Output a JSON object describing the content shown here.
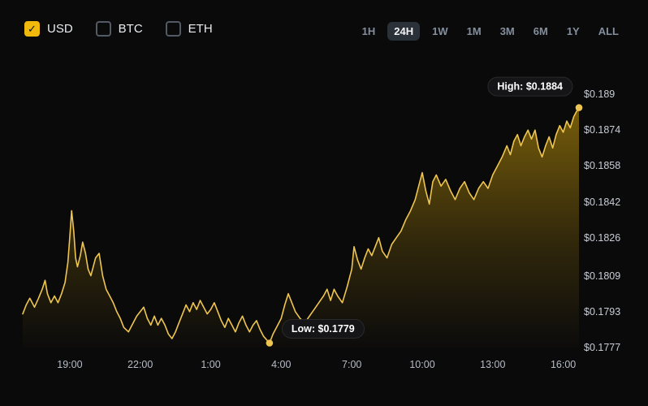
{
  "colors": {
    "accent": "#f0b90b",
    "line": "#eec550"
  },
  "controls": {
    "check_glyph": "✓",
    "currencies": [
      {
        "label": "USD",
        "checked": true
      },
      {
        "label": "BTC",
        "checked": false
      },
      {
        "label": "ETH",
        "checked": false
      }
    ],
    "ranges": [
      {
        "label": "1H",
        "active": false
      },
      {
        "label": "24H",
        "active": true
      },
      {
        "label": "1W",
        "active": false
      },
      {
        "label": "1M",
        "active": false
      },
      {
        "label": "3M",
        "active": false
      },
      {
        "label": "6M",
        "active": false
      },
      {
        "label": "1Y",
        "active": false
      },
      {
        "label": "ALL",
        "active": false
      }
    ]
  },
  "chart_data": {
    "type": "area",
    "title": "",
    "xlabel": "",
    "ylabel": "",
    "grid": false,
    "legend": "none",
    "xlim": [
      17.0,
      40.67
    ],
    "ylim": [
      0.1777,
      0.189
    ],
    "y_ticks": [
      {
        "value": 0.189,
        "label": "$0.189"
      },
      {
        "value": 0.1874,
        "label": "$0.1874"
      },
      {
        "value": 0.1858,
        "label": "$0.1858"
      },
      {
        "value": 0.1842,
        "label": "$0.1842"
      },
      {
        "value": 0.1826,
        "label": "$0.1826"
      },
      {
        "value": 0.1809,
        "label": "$0.1809"
      },
      {
        "value": 0.1793,
        "label": "$0.1793"
      },
      {
        "value": 0.1777,
        "label": "$0.1777"
      }
    ],
    "x_ticks": [
      {
        "t": 19,
        "label": "19:00"
      },
      {
        "t": 22,
        "label": "22:00"
      },
      {
        "t": 25,
        "label": "1:00"
      },
      {
        "t": 28,
        "label": "4:00"
      },
      {
        "t": 31,
        "label": "7:00"
      },
      {
        "t": 34,
        "label": "10:00"
      },
      {
        "t": 37,
        "label": "13:00"
      },
      {
        "t": 40,
        "label": "16:00"
      }
    ],
    "annotations": [
      {
        "id": "high",
        "label": "High: $0.1884",
        "t": 40.67,
        "price": 0.1884
      },
      {
        "id": "low",
        "label": "Low: $0.1779",
        "t": 27.5,
        "price": 0.1779
      }
    ],
    "points": [
      [
        17.0,
        0.1792
      ],
      [
        17.15,
        0.1796
      ],
      [
        17.3,
        0.1799
      ],
      [
        17.5,
        0.1795
      ],
      [
        17.67,
        0.1799
      ],
      [
        17.83,
        0.1803
      ],
      [
        17.95,
        0.1807
      ],
      [
        18.05,
        0.1801
      ],
      [
        18.2,
        0.1797
      ],
      [
        18.35,
        0.18
      ],
      [
        18.5,
        0.1797
      ],
      [
        18.65,
        0.1801
      ],
      [
        18.8,
        0.1806
      ],
      [
        18.92,
        0.1815
      ],
      [
        19.0,
        0.1826
      ],
      [
        19.08,
        0.1838
      ],
      [
        19.17,
        0.1829
      ],
      [
        19.25,
        0.1817
      ],
      [
        19.33,
        0.1813
      ],
      [
        19.45,
        0.1818
      ],
      [
        19.55,
        0.1824
      ],
      [
        19.67,
        0.1819
      ],
      [
        19.78,
        0.1812
      ],
      [
        19.9,
        0.1809
      ],
      [
        20.0,
        0.1813
      ],
      [
        20.1,
        0.1817
      ],
      [
        20.25,
        0.1819
      ],
      [
        20.4,
        0.1809
      ],
      [
        20.55,
        0.1803
      ],
      [
        20.7,
        0.18
      ],
      [
        20.85,
        0.1797
      ],
      [
        21.0,
        0.1793
      ],
      [
        21.15,
        0.179
      ],
      [
        21.3,
        0.1786
      ],
      [
        21.5,
        0.1784
      ],
      [
        21.7,
        0.1788
      ],
      [
        21.85,
        0.1791
      ],
      [
        22.0,
        0.1793
      ],
      [
        22.15,
        0.1795
      ],
      [
        22.3,
        0.179
      ],
      [
        22.45,
        0.1787
      ],
      [
        22.6,
        0.1791
      ],
      [
        22.75,
        0.1787
      ],
      [
        22.9,
        0.179
      ],
      [
        23.05,
        0.1787
      ],
      [
        23.2,
        0.1783
      ],
      [
        23.35,
        0.1781
      ],
      [
        23.5,
        0.1784
      ],
      [
        23.65,
        0.1788
      ],
      [
        23.8,
        0.1792
      ],
      [
        23.95,
        0.1796
      ],
      [
        24.1,
        0.1793
      ],
      [
        24.25,
        0.1797
      ],
      [
        24.4,
        0.1794
      ],
      [
        24.55,
        0.1798
      ],
      [
        24.7,
        0.1795
      ],
      [
        24.85,
        0.1792
      ],
      [
        25.0,
        0.1794
      ],
      [
        25.15,
        0.1797
      ],
      [
        25.3,
        0.1793
      ],
      [
        25.45,
        0.1789
      ],
      [
        25.6,
        0.1786
      ],
      [
        25.75,
        0.179
      ],
      [
        25.9,
        0.1787
      ],
      [
        26.05,
        0.1784
      ],
      [
        26.2,
        0.1788
      ],
      [
        26.35,
        0.1791
      ],
      [
        26.5,
        0.1787
      ],
      [
        26.65,
        0.1784
      ],
      [
        26.8,
        0.1787
      ],
      [
        26.95,
        0.1789
      ],
      [
        27.1,
        0.1785
      ],
      [
        27.25,
        0.1782
      ],
      [
        27.5,
        0.1779
      ],
      [
        27.65,
        0.1783
      ],
      [
        27.8,
        0.1786
      ],
      [
        28.0,
        0.179
      ],
      [
        28.15,
        0.1796
      ],
      [
        28.3,
        0.1801
      ],
      [
        28.45,
        0.1797
      ],
      [
        28.6,
        0.1793
      ],
      [
        28.8,
        0.179
      ],
      [
        29.0,
        0.1788
      ],
      [
        29.2,
        0.1791
      ],
      [
        29.4,
        0.1794
      ],
      [
        29.6,
        0.1797
      ],
      [
        29.8,
        0.18
      ],
      [
        29.95,
        0.1803
      ],
      [
        30.1,
        0.1798
      ],
      [
        30.25,
        0.1803
      ],
      [
        30.4,
        0.18
      ],
      [
        30.6,
        0.1797
      ],
      [
        30.8,
        0.1804
      ],
      [
        31.0,
        0.1812
      ],
      [
        31.1,
        0.1822
      ],
      [
        31.25,
        0.1816
      ],
      [
        31.4,
        0.1812
      ],
      [
        31.55,
        0.1817
      ],
      [
        31.7,
        0.1821
      ],
      [
        31.85,
        0.1818
      ],
      [
        32.0,
        0.1822
      ],
      [
        32.15,
        0.1826
      ],
      [
        32.3,
        0.182
      ],
      [
        32.5,
        0.1817
      ],
      [
        32.7,
        0.1823
      ],
      [
        32.9,
        0.1826
      ],
      [
        33.1,
        0.1829
      ],
      [
        33.3,
        0.1834
      ],
      [
        33.5,
        0.1838
      ],
      [
        33.7,
        0.1843
      ],
      [
        33.85,
        0.1849
      ],
      [
        34.0,
        0.1855
      ],
      [
        34.15,
        0.1847
      ],
      [
        34.3,
        0.1841
      ],
      [
        34.45,
        0.1851
      ],
      [
        34.6,
        0.1854
      ],
      [
        34.8,
        0.1849
      ],
      [
        35.0,
        0.1852
      ],
      [
        35.2,
        0.1847
      ],
      [
        35.4,
        0.1843
      ],
      [
        35.6,
        0.1848
      ],
      [
        35.8,
        0.1851
      ],
      [
        36.0,
        0.1846
      ],
      [
        36.2,
        0.1843
      ],
      [
        36.4,
        0.1848
      ],
      [
        36.6,
        0.1851
      ],
      [
        36.8,
        0.1848
      ],
      [
        37.0,
        0.1854
      ],
      [
        37.2,
        0.1858
      ],
      [
        37.4,
        0.1862
      ],
      [
        37.6,
        0.1867
      ],
      [
        37.75,
        0.1863
      ],
      [
        37.9,
        0.1869
      ],
      [
        38.05,
        0.1872
      ],
      [
        38.2,
        0.1867
      ],
      [
        38.35,
        0.1871
      ],
      [
        38.5,
        0.1874
      ],
      [
        38.65,
        0.187
      ],
      [
        38.8,
        0.1874
      ],
      [
        38.95,
        0.1866
      ],
      [
        39.1,
        0.1862
      ],
      [
        39.25,
        0.1867
      ],
      [
        39.4,
        0.1871
      ],
      [
        39.55,
        0.1866
      ],
      [
        39.7,
        0.1872
      ],
      [
        39.85,
        0.1876
      ],
      [
        40.0,
        0.1873
      ],
      [
        40.15,
        0.1878
      ],
      [
        40.3,
        0.1875
      ],
      [
        40.45,
        0.188
      ],
      [
        40.55,
        0.1882
      ],
      [
        40.67,
        0.1884
      ]
    ]
  }
}
